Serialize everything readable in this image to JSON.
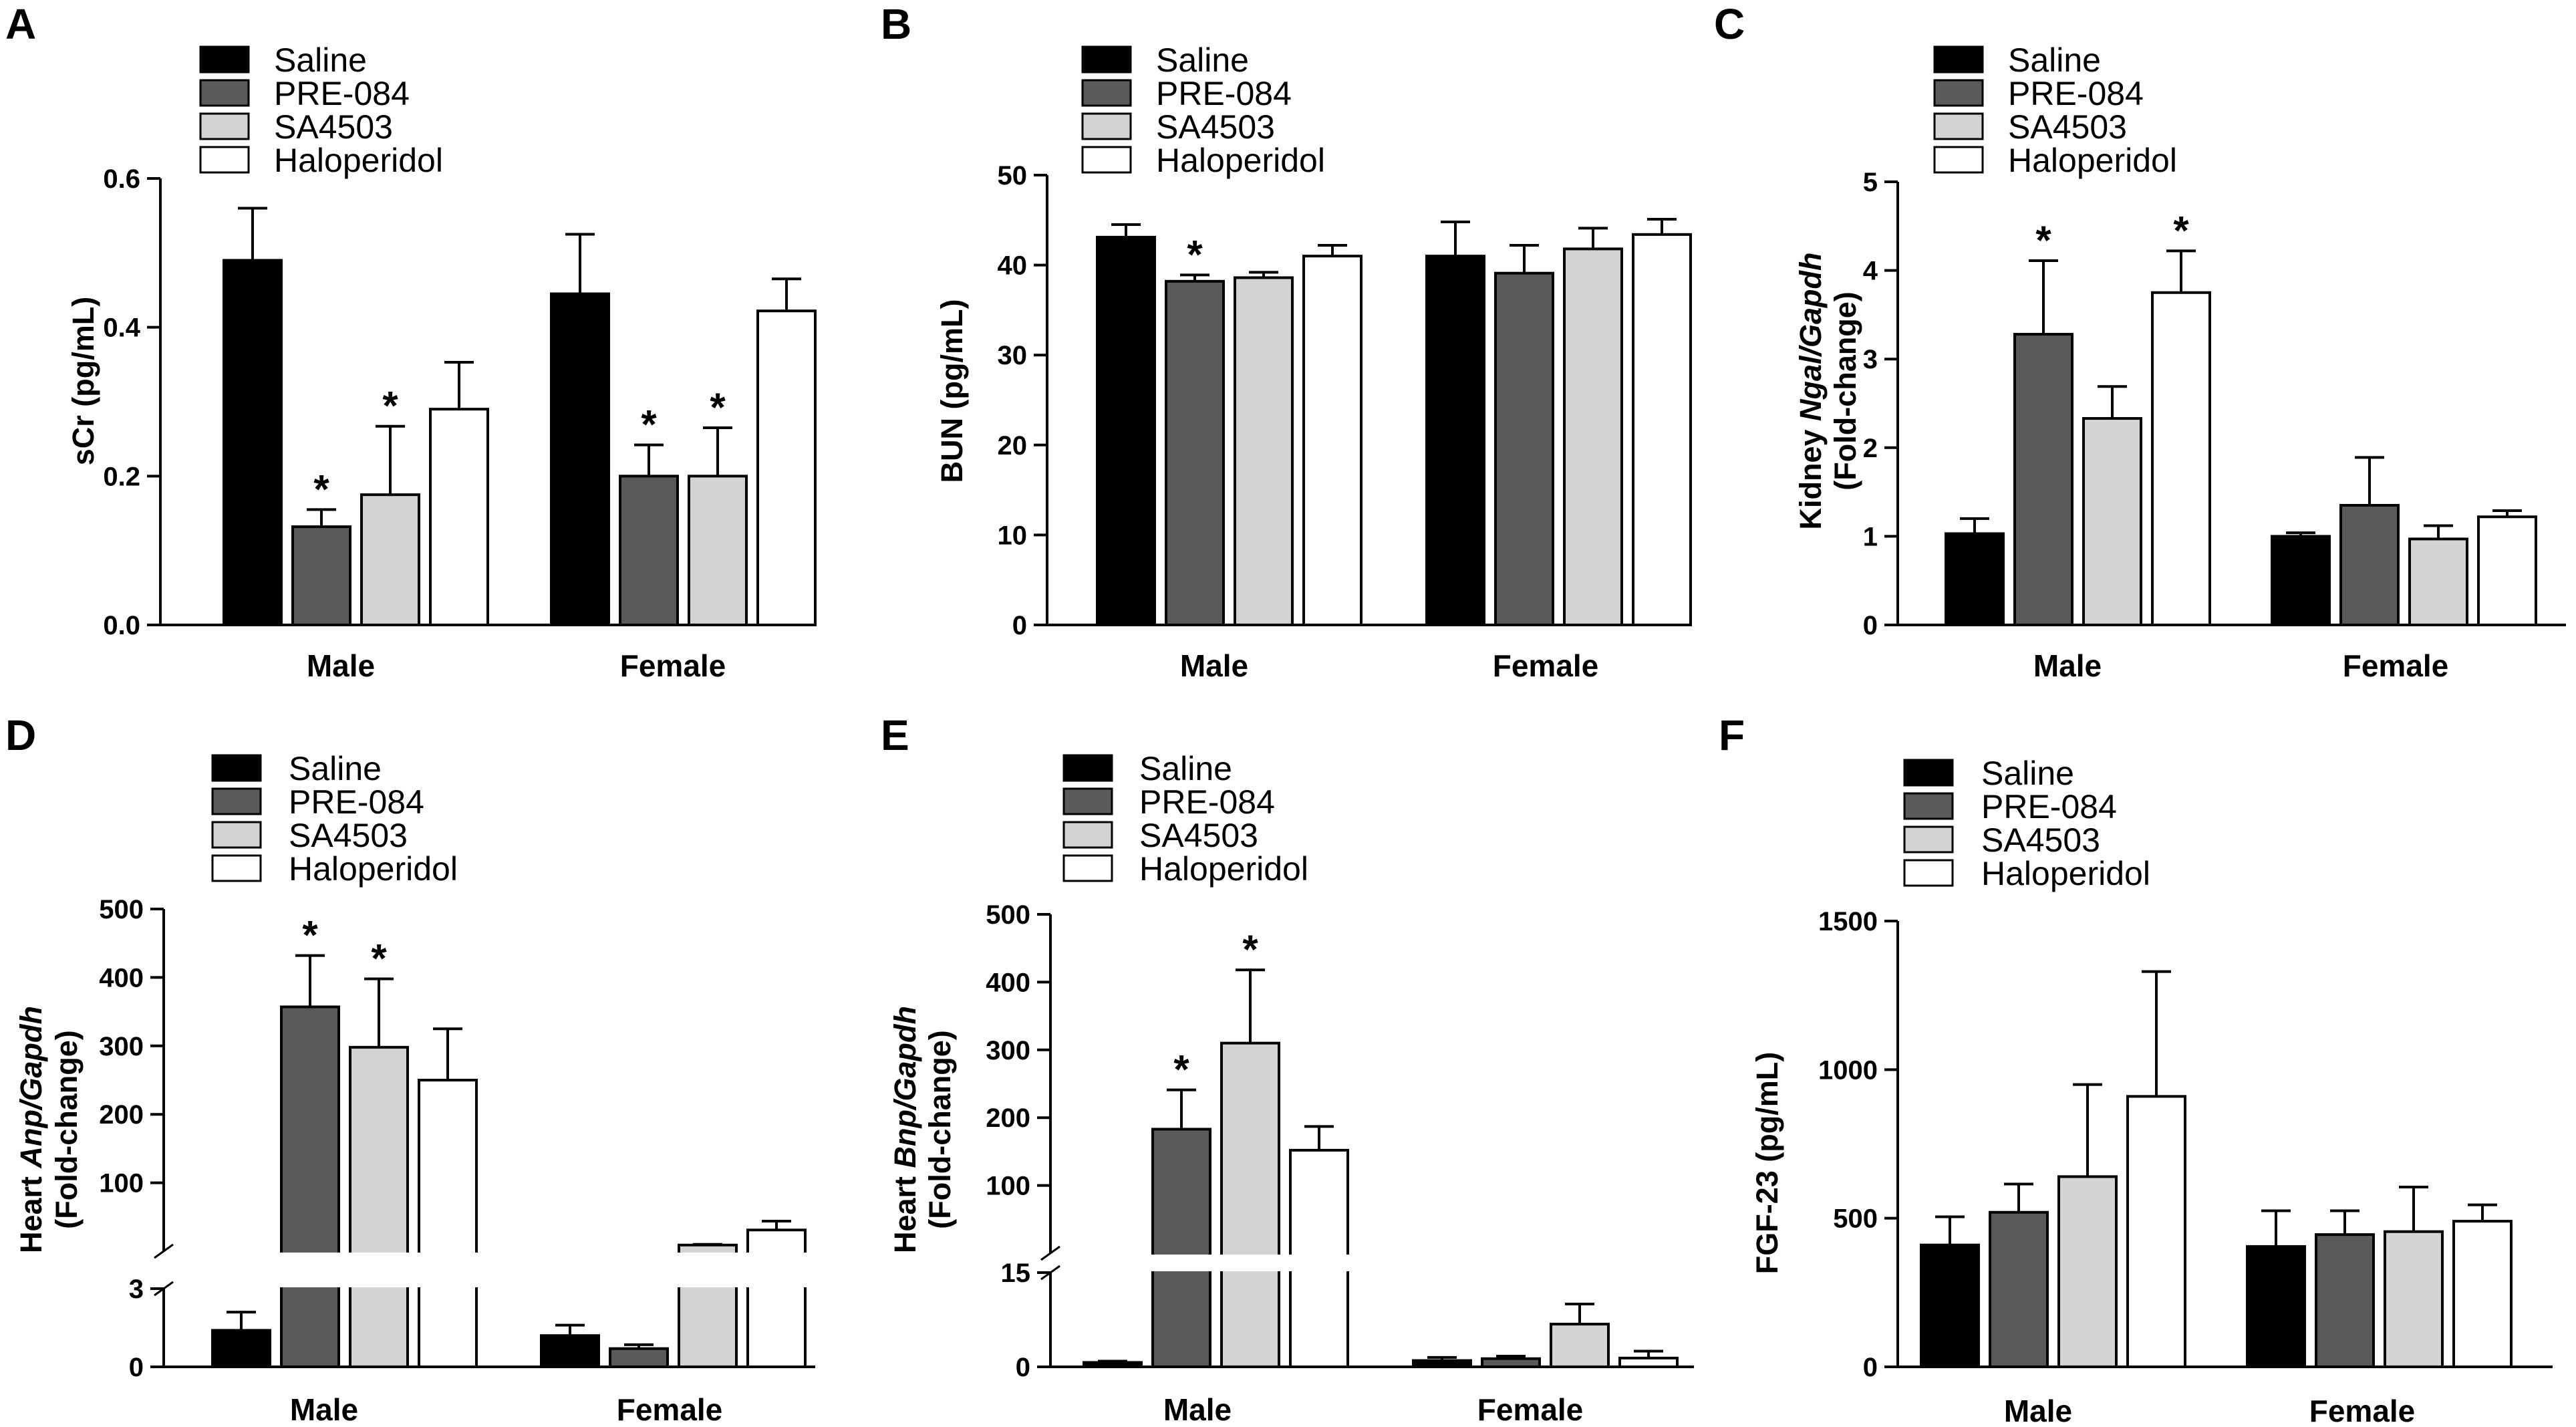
{
  "legend": [
    "Saline",
    "PRE-084",
    "SA4503",
    "Haloperidol"
  ],
  "colors": {
    "saline": "#000000",
    "pre084": "#5a5a5a",
    "sa4503": "#d3d3d3",
    "haloperidol": "#ffffff"
  },
  "chart_data": [
    {
      "id": "A",
      "type": "bar",
      "panel_label": "A",
      "ylabel": "sCr (pg/mL)",
      "categories": [
        "Male",
        "Female"
      ],
      "ylim": [
        0,
        0.6
      ],
      "yticks": [
        "0.0",
        "0.2",
        "0.4",
        "0.6"
      ],
      "series": [
        {
          "name": "Saline",
          "values": [
            0.49,
            0.445
          ],
          "errors": [
            0.07,
            0.08
          ]
        },
        {
          "name": "PRE-084",
          "values": [
            0.132,
            0.2
          ],
          "errors": [
            0.023,
            0.042
          ]
        },
        {
          "name": "SA4503",
          "values": [
            0.175,
            0.2
          ],
          "errors": [
            0.092,
            0.065
          ]
        },
        {
          "name": "Haloperidol",
          "values": [
            0.29,
            0.422
          ],
          "errors": [
            0.063,
            0.043
          ]
        }
      ],
      "significance": [
        [
          false,
          false
        ],
        [
          true,
          true
        ],
        [
          true,
          true
        ],
        [
          false,
          false
        ]
      ]
    },
    {
      "id": "B",
      "type": "bar",
      "panel_label": "B",
      "ylabel": "BUN (pg/mL)",
      "categories": [
        "Male",
        "Female"
      ],
      "ylim": [
        0,
        50
      ],
      "yticks": [
        "0",
        "10",
        "20",
        "30",
        "40",
        "50"
      ],
      "series": [
        {
          "name": "Saline",
          "values": [
            43.1,
            41.0
          ],
          "errors": [
            1.4,
            3.8
          ]
        },
        {
          "name": "PRE-084",
          "values": [
            38.2,
            39.1
          ],
          "errors": [
            0.7,
            3.1
          ]
        },
        {
          "name": "SA4503",
          "values": [
            38.6,
            41.8
          ],
          "errors": [
            0.6,
            2.3
          ]
        },
        {
          "name": "Haloperidol",
          "values": [
            41.0,
            43.4
          ],
          "errors": [
            1.2,
            1.7
          ]
        }
      ],
      "significance": [
        [
          false,
          false
        ],
        [
          true,
          false
        ],
        [
          false,
          false
        ],
        [
          false,
          false
        ]
      ]
    },
    {
      "id": "C",
      "type": "bar",
      "panel_label": "C",
      "ylabel_parts": [
        "Kidney ",
        "Ngal/Gapdh"
      ],
      "ylabel2": "(Fold-change)",
      "categories": [
        "Male",
        "Female"
      ],
      "ylim": [
        0,
        5
      ],
      "yticks": [
        "0",
        "1",
        "2",
        "3",
        "4",
        "5"
      ],
      "series": [
        {
          "name": "Saline",
          "values": [
            1.03,
            1.0
          ],
          "errors": [
            0.17,
            0.04
          ]
        },
        {
          "name": "PRE-084",
          "values": [
            3.28,
            1.35
          ],
          "errors": [
            0.83,
            0.54
          ]
        },
        {
          "name": "SA4503",
          "values": [
            2.33,
            0.97
          ],
          "errors": [
            0.36,
            0.15
          ]
        },
        {
          "name": "Haloperidol",
          "values": [
            3.75,
            1.22
          ],
          "errors": [
            0.47,
            0.07
          ]
        }
      ],
      "significance": [
        [
          false,
          false
        ],
        [
          true,
          false
        ],
        [
          false,
          false
        ],
        [
          true,
          false
        ]
      ]
    },
    {
      "id": "D",
      "type": "bar",
      "panel_label": "D",
      "ylabel_parts": [
        "Heart ",
        "Anp/Gapdh"
      ],
      "ylabel2": "(Fold-change)",
      "categories": [
        "Male",
        "Female"
      ],
      "broken_axis": true,
      "ylim_low": [
        0,
        3
      ],
      "ylim_high": [
        0,
        500
      ],
      "yticks_low": [
        "0",
        "3"
      ],
      "yticks_high": [
        "100",
        "200",
        "300",
        "400",
        "500"
      ],
      "series": [
        {
          "name": "Saline",
          "values": [
            1.4,
            1.2
          ],
          "errors": [
            0.7,
            0.4
          ]
        },
        {
          "name": "PRE-084",
          "values": [
            357,
            0.7
          ],
          "errors": [
            75,
            0.15
          ]
        },
        {
          "name": "SA4503",
          "values": [
            298,
            9
          ],
          "errors": [
            100,
            1
          ]
        },
        {
          "name": "Haloperidol",
          "values": [
            250,
            31
          ],
          "errors": [
            75,
            13
          ]
        }
      ],
      "significance": [
        [
          false,
          false
        ],
        [
          true,
          false
        ],
        [
          true,
          false
        ],
        [
          false,
          false
        ]
      ]
    },
    {
      "id": "E",
      "type": "bar",
      "panel_label": "E",
      "ylabel_parts": [
        "Heart ",
        "Bnp/Gapdh"
      ],
      "ylabel2": "(Fold-change)",
      "categories": [
        "Male",
        "Female"
      ],
      "broken_axis": true,
      "ylim_low": [
        0,
        15
      ],
      "ylim_high": [
        0,
        500
      ],
      "yticks_low": [
        "0",
        "15"
      ],
      "yticks_high": [
        "100",
        "200",
        "300",
        "400",
        "500"
      ],
      "series": [
        {
          "name": "Saline",
          "values": [
            0.7,
            1.0
          ],
          "errors": [
            0.2,
            0.5
          ]
        },
        {
          "name": "PRE-084",
          "values": [
            183,
            1.3
          ],
          "errors": [
            58,
            0.4
          ]
        },
        {
          "name": "SA4503",
          "values": [
            310,
            6.8
          ],
          "errors": [
            108,
            3.2
          ]
        },
        {
          "name": "Haloperidol",
          "values": [
            152,
            1.4
          ],
          "errors": [
            35,
            1.1
          ]
        }
      ],
      "significance": [
        [
          false,
          false
        ],
        [
          true,
          false
        ],
        [
          true,
          false
        ],
        [
          false,
          false
        ]
      ]
    },
    {
      "id": "F",
      "type": "bar",
      "panel_label": "F",
      "ylabel": "FGF-23 (pg/mL)",
      "categories": [
        "Male",
        "Female"
      ],
      "ylim": [
        0,
        1500
      ],
      "yticks": [
        "0",
        "500",
        "1000",
        "1500"
      ],
      "series": [
        {
          "name": "Saline",
          "values": [
            410,
            405
          ],
          "errors": [
            95,
            120
          ]
        },
        {
          "name": "PRE-084",
          "values": [
            520,
            445
          ],
          "errors": [
            95,
            80
          ]
        },
        {
          "name": "SA4503",
          "values": [
            640,
            455
          ],
          "errors": [
            310,
            150
          ]
        },
        {
          "name": "Haloperidol",
          "values": [
            910,
            490
          ],
          "errors": [
            420,
            55
          ]
        }
      ],
      "significance": [
        [
          false,
          false
        ],
        [
          false,
          false
        ],
        [
          false,
          false
        ],
        [
          false,
          false
        ]
      ]
    }
  ]
}
